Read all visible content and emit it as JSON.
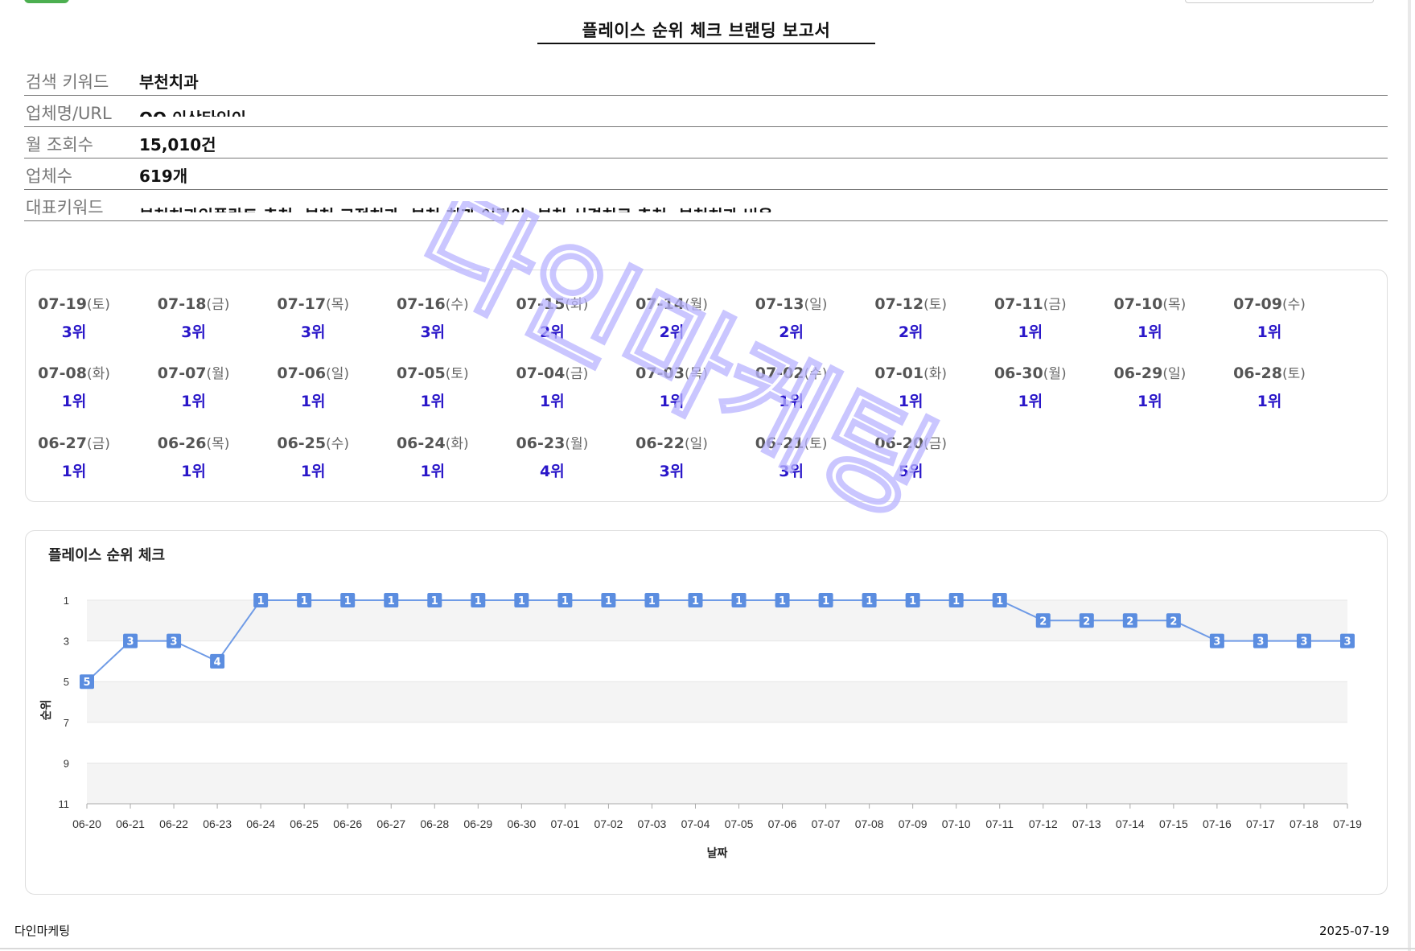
{
  "report": {
    "title": "플레이스 순위 체크 브랜딩 보고서"
  },
  "info": [
    {
      "label": "검색 키워드",
      "value": "부천치과"
    },
    {
      "label": "업체명/URL",
      "value": "OO 이상타인이"
    },
    {
      "label": "월 조회수",
      "value": "15,010건"
    },
    {
      "label": "업체수",
      "value": "619개"
    },
    {
      "label": "대표키워드",
      "value": "부천치과임플란트 추천, 부천 교정치과, 부천 치과 어린이, 부천 신경치료 추천, 부천치과 비용"
    }
  ],
  "daily_ranks": [
    {
      "date": "07-19",
      "dow": "(토)",
      "rank": "3위"
    },
    {
      "date": "07-18",
      "dow": "(금)",
      "rank": "3위"
    },
    {
      "date": "07-17",
      "dow": "(목)",
      "rank": "3위"
    },
    {
      "date": "07-16",
      "dow": "(수)",
      "rank": "3위"
    },
    {
      "date": "07-15",
      "dow": "(화)",
      "rank": "2위"
    },
    {
      "date": "07-14",
      "dow": "(월)",
      "rank": "2위"
    },
    {
      "date": "07-13",
      "dow": "(일)",
      "rank": "2위"
    },
    {
      "date": "07-12",
      "dow": "(토)",
      "rank": "2위"
    },
    {
      "date": "07-11",
      "dow": "(금)",
      "rank": "1위"
    },
    {
      "date": "07-10",
      "dow": "(목)",
      "rank": "1위"
    },
    {
      "date": "07-09",
      "dow": "(수)",
      "rank": "1위"
    },
    {
      "date": "07-08",
      "dow": "(화)",
      "rank": "1위"
    },
    {
      "date": "07-07",
      "dow": "(월)",
      "rank": "1위"
    },
    {
      "date": "07-06",
      "dow": "(일)",
      "rank": "1위"
    },
    {
      "date": "07-05",
      "dow": "(토)",
      "rank": "1위"
    },
    {
      "date": "07-04",
      "dow": "(금)",
      "rank": "1위"
    },
    {
      "date": "07-03",
      "dow": "(목)",
      "rank": "1위"
    },
    {
      "date": "07-02",
      "dow": "(수)",
      "rank": "1위"
    },
    {
      "date": "07-01",
      "dow": "(화)",
      "rank": "1위"
    },
    {
      "date": "06-30",
      "dow": "(월)",
      "rank": "1위"
    },
    {
      "date": "06-29",
      "dow": "(일)",
      "rank": "1위"
    },
    {
      "date": "06-28",
      "dow": "(토)",
      "rank": "1위"
    },
    {
      "date": "06-27",
      "dow": "(금)",
      "rank": "1위"
    },
    {
      "date": "06-26",
      "dow": "(목)",
      "rank": "1위"
    },
    {
      "date": "06-25",
      "dow": "(수)",
      "rank": "1위"
    },
    {
      "date": "06-24",
      "dow": "(화)",
      "rank": "1위"
    },
    {
      "date": "06-23",
      "dow": "(월)",
      "rank": "4위"
    },
    {
      "date": "06-22",
      "dow": "(일)",
      "rank": "3위"
    },
    {
      "date": "06-21",
      "dow": "(토)",
      "rank": "3위"
    },
    {
      "date": "06-20",
      "dow": "(금)",
      "rank": "5위"
    }
  ],
  "chart_data": {
    "type": "line",
    "title": "플레이스 순위 체크",
    "xlabel": "날짜",
    "ylabel": "순위",
    "ylim": [
      11,
      1
    ],
    "y_inverted": true,
    "yticks": [
      1,
      3,
      5,
      7,
      9,
      11
    ],
    "x": [
      "06-20",
      "06-21",
      "06-22",
      "06-23",
      "06-24",
      "06-25",
      "06-26",
      "06-27",
      "06-28",
      "06-29",
      "06-30",
      "07-01",
      "07-02",
      "07-03",
      "07-04",
      "07-05",
      "07-06",
      "07-07",
      "07-08",
      "07-09",
      "07-10",
      "07-11",
      "07-12",
      "07-13",
      "07-14",
      "07-15",
      "07-16",
      "07-17",
      "07-18",
      "07-19"
    ],
    "series": [
      {
        "values": [
          5,
          3,
          3,
          4,
          1,
          1,
          1,
          1,
          1,
          1,
          1,
          1,
          1,
          1,
          1,
          1,
          1,
          1,
          1,
          1,
          1,
          1,
          2,
          2,
          2,
          2,
          3,
          3,
          3,
          3
        ]
      }
    ],
    "grid": true,
    "colors": {
      "line": "#6f9be6",
      "marker": "#5b8de0",
      "band": "#f4f4f4"
    }
  },
  "watermark": {
    "text": "다인마케팅",
    "color": "#b9b4ff"
  },
  "footer": {
    "brand": "다인마케팅",
    "date": "2025-07-19"
  }
}
